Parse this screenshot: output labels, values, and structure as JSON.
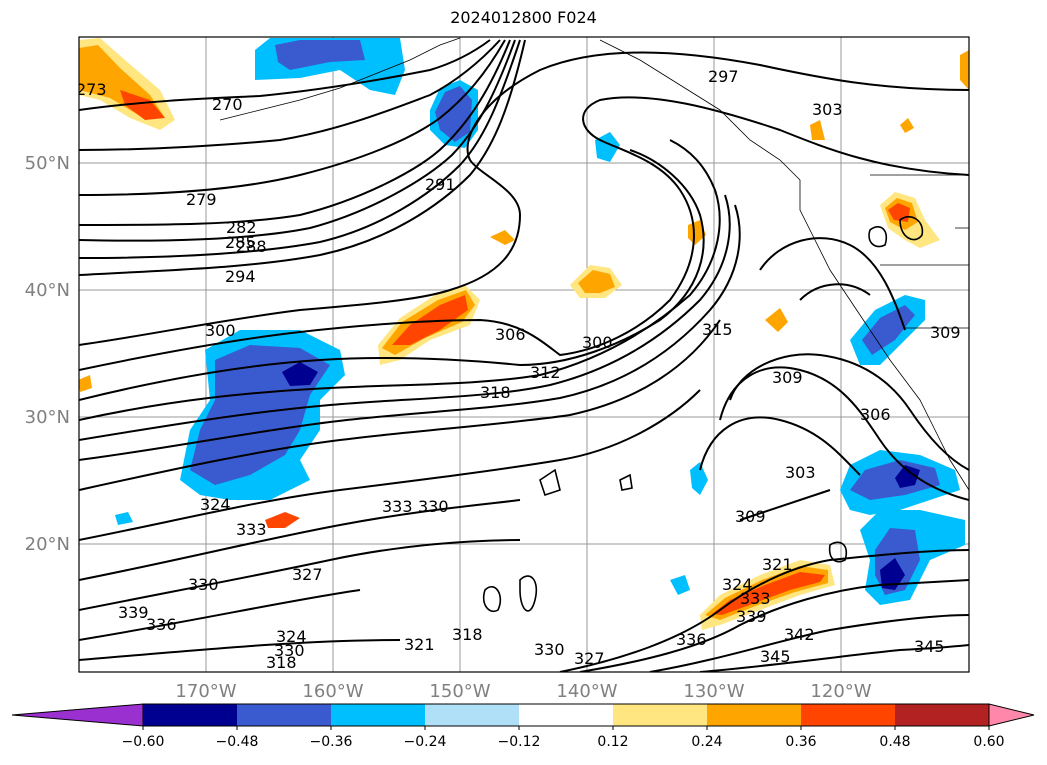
{
  "title": "2024012800 F024",
  "lat_labels": [
    "50°N",
    "40°N",
    "30°N",
    "20°N"
  ],
  "lon_labels": [
    "170°W",
    "160°W",
    "150°W",
    "140°W",
    "130°W",
    "120°W"
  ],
  "colorbar": {
    "ticks": [
      "−0.60",
      "−0.48",
      "−0.36",
      "−0.24",
      "−0.12",
      "0.12",
      "0.24",
      "0.36",
      "0.48",
      "0.60"
    ],
    "colors": [
      "#9b30d0",
      "#000090",
      "#3a5bd0",
      "#00bfff",
      "#b0e0f8",
      "#ffffff",
      "#ffe680",
      "#ffa500",
      "#ff4500",
      "#b22222",
      "#ff88aa"
    ]
  },
  "contour_labels": [
    {
      "text": "273"
    },
    {
      "text": "270"
    },
    {
      "text": "279"
    },
    {
      "text": "282"
    },
    {
      "text": "285"
    },
    {
      "text": "288"
    },
    {
      "text": "294"
    },
    {
      "text": "291"
    },
    {
      "text": "297"
    },
    {
      "text": "303"
    },
    {
      "text": "300"
    },
    {
      "text": "306"
    },
    {
      "text": "312"
    },
    {
      "text": "318"
    },
    {
      "text": "300"
    },
    {
      "text": "315"
    },
    {
      "text": "309"
    },
    {
      "text": "306"
    },
    {
      "text": "309"
    },
    {
      "text": "303"
    },
    {
      "text": "309"
    },
    {
      "text": "324"
    },
    {
      "text": "333"
    },
    {
      "text": "333"
    },
    {
      "text": "330"
    },
    {
      "text": "327"
    },
    {
      "text": "330"
    },
    {
      "text": "339"
    },
    {
      "text": "336"
    },
    {
      "text": "324"
    },
    {
      "text": "321"
    },
    {
      "text": "318"
    },
    {
      "text": "330"
    },
    {
      "text": "327"
    },
    {
      "text": "321"
    },
    {
      "text": "324"
    },
    {
      "text": "333"
    },
    {
      "text": "339"
    },
    {
      "text": "342"
    },
    {
      "text": "345"
    },
    {
      "text": "345"
    },
    {
      "text": "336"
    },
    {
      "text": "330"
    },
    {
      "text": "318"
    }
  ]
}
